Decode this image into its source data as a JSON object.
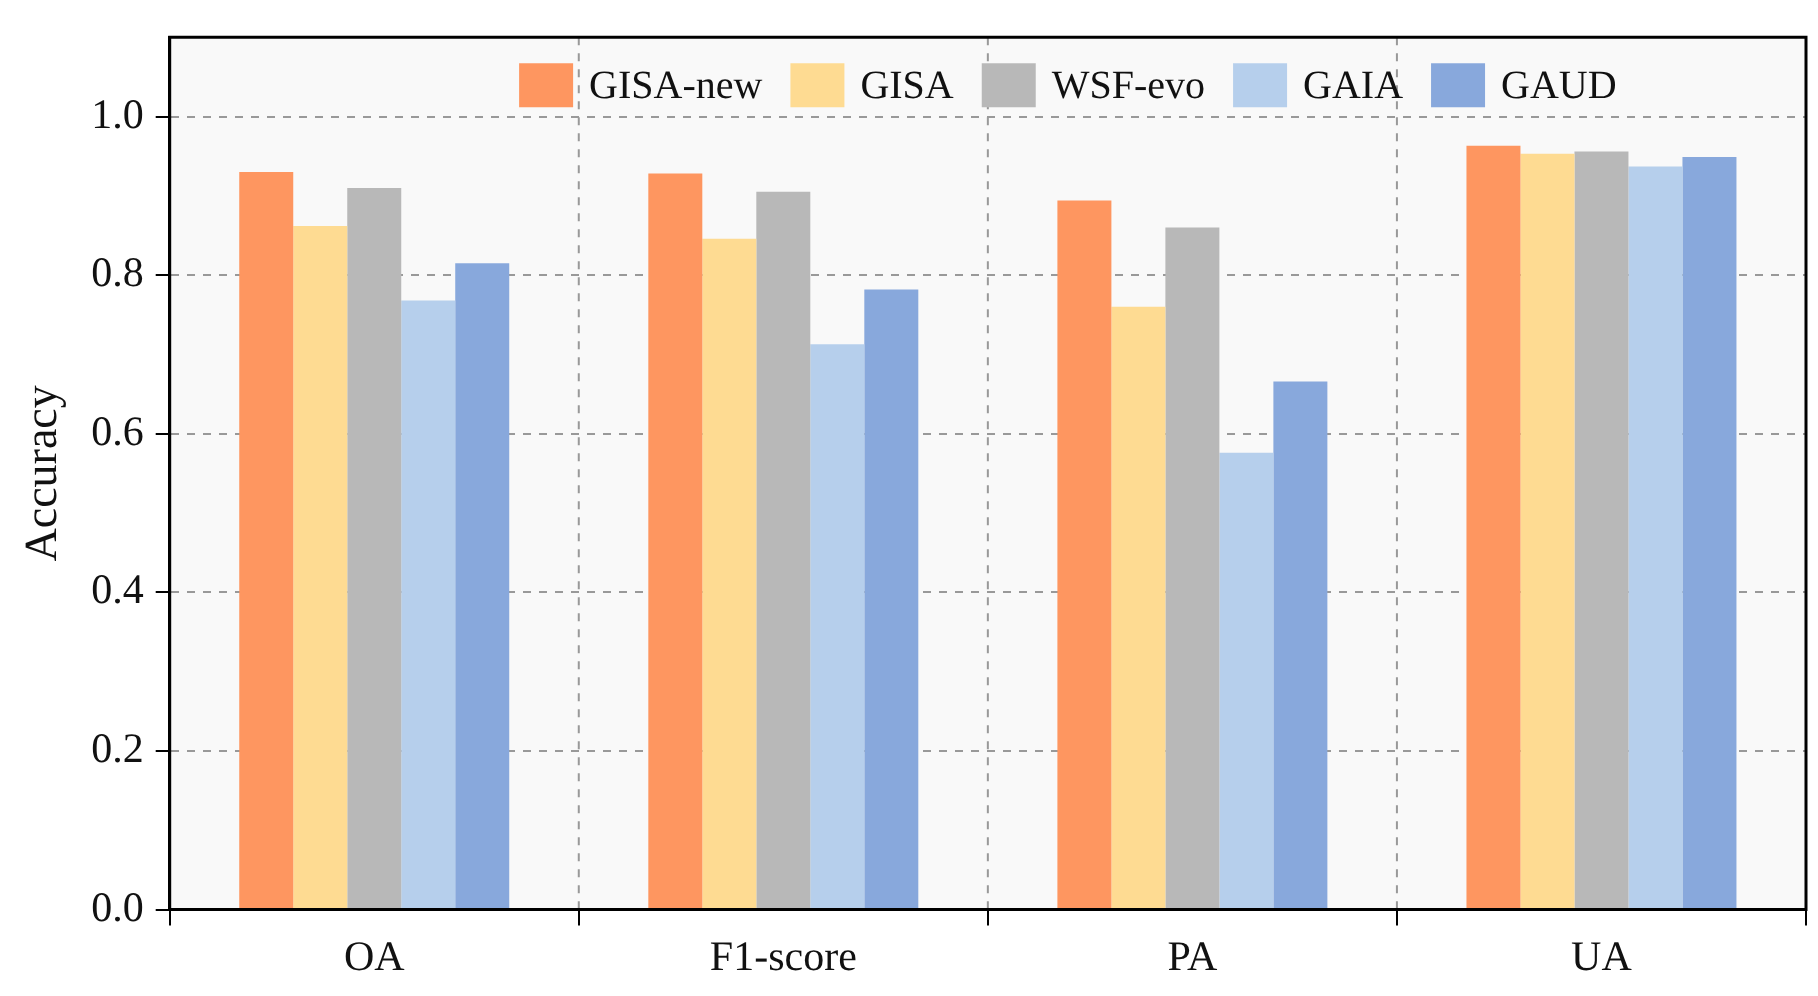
{
  "chart_data": {
    "type": "bar",
    "ylabel": "Accuracy",
    "categories": [
      "OA",
      "F1-score",
      "PA",
      "UA"
    ],
    "series": [
      {
        "name": "GISA-new",
        "color": "#fe9660",
        "values": [
          0.93,
          0.928,
          0.894,
          0.963
        ]
      },
      {
        "name": "GISA",
        "color": "#fedb92",
        "values": [
          0.862,
          0.846,
          0.76,
          0.953
        ]
      },
      {
        "name": "WSF-evo",
        "color": "#b8b8b8",
        "values": [
          0.91,
          0.905,
          0.86,
          0.956
        ]
      },
      {
        "name": "GAIA",
        "color": "#b6cfec",
        "values": [
          0.768,
          0.713,
          0.576,
          0.937
        ]
      },
      {
        "name": "GAUD",
        "color": "#88a8dc",
        "values": [
          0.815,
          0.782,
          0.666,
          0.949
        ]
      }
    ],
    "ylim": [
      0,
      1.1
    ],
    "yticks": [
      {
        "value": 0,
        "label": "0.0"
      },
      {
        "value": 0.2,
        "label": "0.2"
      },
      {
        "value": 0.4,
        "label": "0.4"
      },
      {
        "value": 0.6,
        "label": "0.6"
      },
      {
        "value": 0.8,
        "label": "0.8"
      },
      {
        "value": 1,
        "label": "1.0"
      }
    ],
    "grid": true,
    "legend": "top"
  }
}
